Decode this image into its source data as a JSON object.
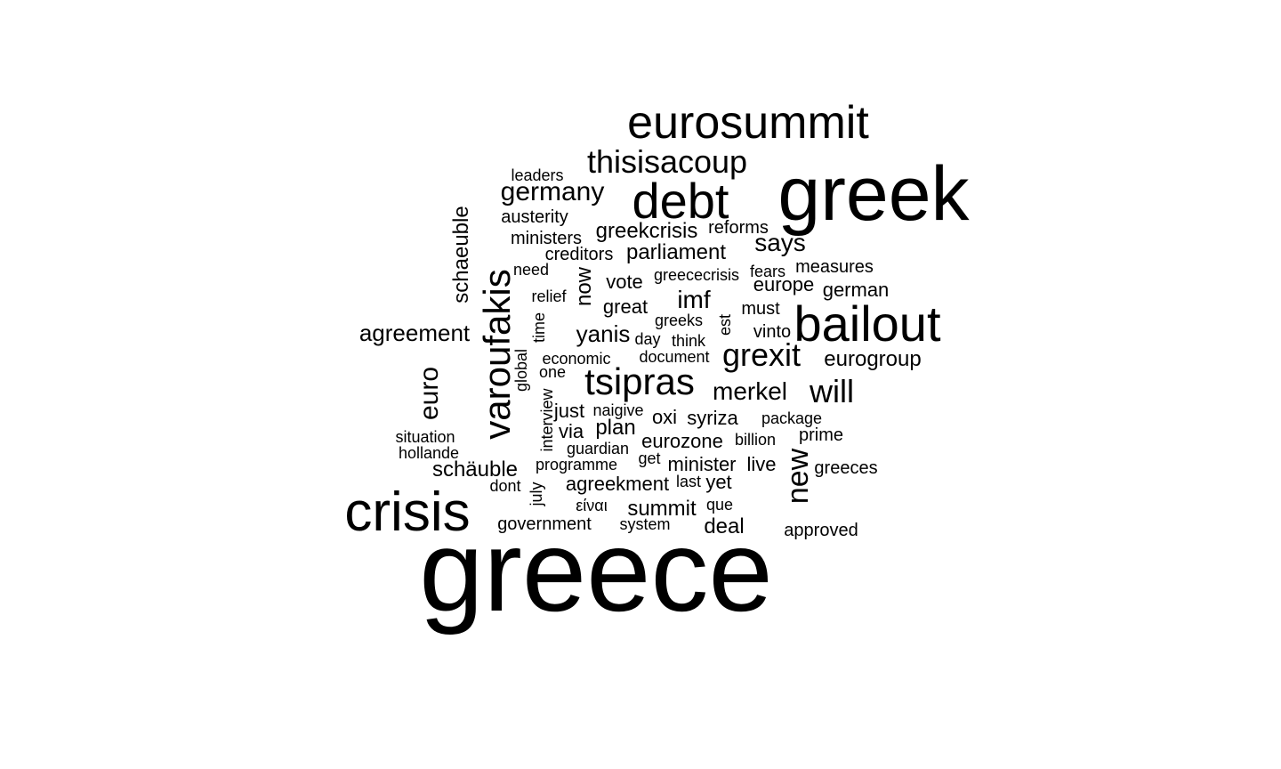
{
  "words": [
    {
      "text": "greece",
      "rotated": false
    },
    {
      "text": "greek",
      "rotated": false
    },
    {
      "text": "eurosummit",
      "rotated": false
    },
    {
      "text": "crisis",
      "rotated": false
    },
    {
      "text": "bailout",
      "rotated": false
    },
    {
      "text": "debt",
      "rotated": false
    },
    {
      "text": "varoufakis",
      "rotated": true
    },
    {
      "text": "tsipras",
      "rotated": false
    },
    {
      "text": "thisisacoup",
      "rotated": false
    },
    {
      "text": "grexit",
      "rotated": false
    },
    {
      "text": "will",
      "rotated": false
    },
    {
      "text": "germany",
      "rotated": false
    },
    {
      "text": "new",
      "rotated": true
    },
    {
      "text": "euro",
      "rotated": true
    },
    {
      "text": "merkel",
      "rotated": false
    },
    {
      "text": "agreement",
      "rotated": false
    },
    {
      "text": "says",
      "rotated": false
    },
    {
      "text": "eurogroup",
      "rotated": false
    },
    {
      "text": "imf",
      "rotated": false
    },
    {
      "text": "yanis",
      "rotated": false
    },
    {
      "text": "schaeuble",
      "rotated": true
    },
    {
      "text": "greekcrisis",
      "rotated": false
    },
    {
      "text": "parliament",
      "rotated": false
    },
    {
      "text": "now",
      "rotated": true
    },
    {
      "text": "schäuble",
      "rotated": false
    },
    {
      "text": "europe",
      "rotated": false
    },
    {
      "text": "german",
      "rotated": false
    },
    {
      "text": "summit",
      "rotated": false
    },
    {
      "text": "deal",
      "rotated": false
    },
    {
      "text": "plan",
      "rotated": false
    },
    {
      "text": "eurozone",
      "rotated": false
    },
    {
      "text": "vote",
      "rotated": false
    },
    {
      "text": "great",
      "rotated": false
    },
    {
      "text": "agreekment",
      "rotated": false
    },
    {
      "text": "minister",
      "rotated": false
    },
    {
      "text": "syriza",
      "rotated": false
    },
    {
      "text": "oxi",
      "rotated": false
    },
    {
      "text": "via",
      "rotated": false
    },
    {
      "text": "just",
      "rotated": false
    },
    {
      "text": "live",
      "rotated": false
    },
    {
      "text": "yet",
      "rotated": false
    },
    {
      "text": "government",
      "rotated": false
    },
    {
      "text": "austerity",
      "rotated": false
    },
    {
      "text": "ministers",
      "rotated": false
    },
    {
      "text": "measures",
      "rotated": false
    },
    {
      "text": "prime",
      "rotated": false
    },
    {
      "text": "reforms",
      "rotated": false
    },
    {
      "text": "creditors",
      "rotated": false
    },
    {
      "text": "must",
      "rotated": false
    },
    {
      "text": "vinto",
      "rotated": false
    },
    {
      "text": "greeces",
      "rotated": false
    },
    {
      "text": "approved",
      "rotated": false
    },
    {
      "text": "leaders",
      "rotated": false
    },
    {
      "text": "guardian",
      "rotated": false
    },
    {
      "text": "programme",
      "rotated": false
    },
    {
      "text": "economic",
      "rotated": false
    },
    {
      "text": "greececrisis",
      "rotated": false
    },
    {
      "text": "fears",
      "rotated": false
    },
    {
      "text": "greeks",
      "rotated": false
    },
    {
      "text": "naigive",
      "rotated": false
    },
    {
      "text": "package",
      "rotated": false
    },
    {
      "text": "billion",
      "rotated": false
    },
    {
      "text": "situation",
      "rotated": false
    },
    {
      "text": "hollande",
      "rotated": false
    },
    {
      "text": "need",
      "rotated": false
    },
    {
      "text": "relief",
      "rotated": false
    },
    {
      "text": "one",
      "rotated": false
    },
    {
      "text": "dont",
      "rotated": false
    },
    {
      "text": "είναι",
      "rotated": false
    },
    {
      "text": "que",
      "rotated": false
    },
    {
      "text": "system",
      "rotated": false
    },
    {
      "text": "document",
      "rotated": false
    },
    {
      "text": "think",
      "rotated": false
    },
    {
      "text": "day",
      "rotated": false
    },
    {
      "text": "last",
      "rotated": false
    },
    {
      "text": "get",
      "rotated": false
    },
    {
      "text": "global",
      "rotated": true
    },
    {
      "text": "time",
      "rotated": true
    },
    {
      "text": "interview",
      "rotated": true
    },
    {
      "text": "july",
      "rotated": true
    },
    {
      "text": "est",
      "rotated": true
    }
  ]
}
